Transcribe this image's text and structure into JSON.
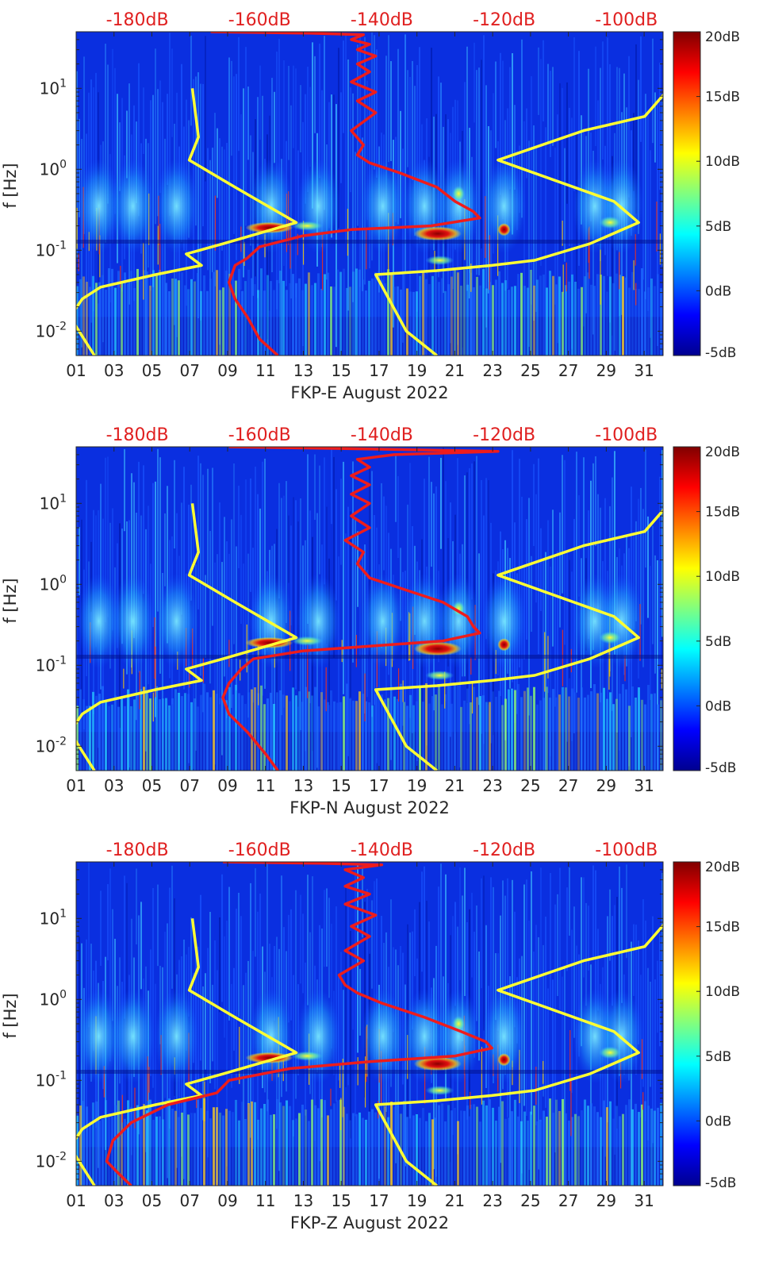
{
  "chart_data": [
    {
      "type": "heatmap",
      "xlabel": "FKP-E August 2022",
      "ylabel": "f [Hz]",
      "x_ticks": [
        "01",
        "03",
        "05",
        "07",
        "09",
        "11",
        "13",
        "15",
        "17",
        "19",
        "21",
        "23",
        "25",
        "27",
        "29",
        "31"
      ],
      "x_range_days": [
        1,
        32
      ],
      "y_range_hz": [
        0.005,
        50
      ],
      "y_ticks": [
        {
          "v": 0.01,
          "b": "10",
          "e": "-2"
        },
        {
          "v": 0.1,
          "b": "10",
          "e": "-1"
        },
        {
          "v": 1,
          "b": "10",
          "e": "0"
        },
        {
          "v": 10,
          "b": "10",
          "e": "1"
        }
      ],
      "top_axis_labels": [
        "-180dB",
        "-160dB",
        "-140dB",
        "-120dB",
        "-100dB"
      ],
      "top_axis_values": [
        -180,
        -160,
        -140,
        -120,
        -100
      ],
      "top_axis_range_db": [
        -190,
        -94
      ],
      "colorbar": {
        "range_db": [
          -5,
          20
        ],
        "labels": [
          "20dB",
          "15dB",
          "10dB",
          "5dB",
          "0dB",
          "-5dB"
        ],
        "values": [
          20,
          15,
          10,
          5,
          0,
          -5
        ]
      },
      "series": [
        {
          "name": "noise-model-low",
          "color": "#ffff33",
          "points": [
            [
              -171,
              10
            ],
            [
              -170,
              2.5
            ],
            [
              -171.5,
              1.3
            ],
            [
              -164,
              0.6
            ],
            [
              -154,
              0.22
            ],
            [
              -166,
              0.12
            ],
            [
              -172,
              0.09
            ],
            [
              -169.5,
              0.065
            ],
            [
              -177,
              0.05
            ],
            [
              -186,
              0.035
            ],
            [
              -189,
              0.025
            ],
            [
              -191,
              0.015
            ],
            [
              -187,
              0.005
            ]
          ]
        },
        {
          "name": "noise-model-high",
          "color": "#ffff33",
          "points": [
            [
              -93,
              10
            ],
            [
              -97,
              4.5
            ],
            [
              -107,
              3
            ],
            [
              -121,
              1.3
            ],
            [
              -102,
              0.4
            ],
            [
              -98,
              0.22
            ],
            [
              -106,
              0.12
            ],
            [
              -115,
              0.075
            ],
            [
              -122,
              0.065
            ],
            [
              -131,
              0.056
            ],
            [
              -141,
              0.05
            ],
            [
              -136,
              0.01
            ],
            [
              -131,
              0.005
            ]
          ]
        },
        {
          "name": "station-median-psd",
          "color": "#ee1c1c",
          "points": [
            [
              -168,
              50
            ],
            [
              -152,
              48
            ],
            [
              -143,
              46
            ],
            [
              -145,
              40
            ],
            [
              -142,
              35
            ],
            [
              -144,
              30
            ],
            [
              -141,
              25
            ],
            [
              -144,
              20
            ],
            [
              -142,
              16
            ],
            [
              -145,
              12
            ],
            [
              -141,
              9
            ],
            [
              -144,
              7
            ],
            [
              -141,
              5
            ],
            [
              -145,
              3
            ],
            [
              -143,
              2
            ],
            [
              -144,
              1.5
            ],
            [
              -142,
              1.2
            ],
            [
              -137,
              0.9
            ],
            [
              -131,
              0.6
            ],
            [
              -128,
              0.4
            ],
            [
              -125,
              0.3
            ],
            [
              -124,
              0.25
            ],
            [
              -132,
              0.2
            ],
            [
              -145,
              0.18
            ],
            [
              -153,
              0.15
            ],
            [
              -160,
              0.11
            ],
            [
              -162,
              0.08
            ],
            [
              -164,
              0.065
            ],
            [
              -165,
              0.04
            ],
            [
              -164,
              0.025
            ],
            [
              -162,
              0.015
            ],
            [
              -160,
              0.008
            ],
            [
              -157,
              0.005
            ]
          ]
        }
      ]
    },
    {
      "type": "heatmap",
      "xlabel": "FKP-N August 2022",
      "ylabel": "f [Hz]",
      "x_ticks": [
        "01",
        "03",
        "05",
        "07",
        "09",
        "11",
        "13",
        "15",
        "17",
        "19",
        "21",
        "23",
        "25",
        "27",
        "29",
        "31"
      ],
      "x_range_days": [
        1,
        32
      ],
      "y_range_hz": [
        0.005,
        50
      ],
      "y_ticks": [
        {
          "v": 0.01,
          "b": "10",
          "e": "-2"
        },
        {
          "v": 0.1,
          "b": "10",
          "e": "-1"
        },
        {
          "v": 1,
          "b": "10",
          "e": "0"
        },
        {
          "v": 10,
          "b": "10",
          "e": "1"
        }
      ],
      "top_axis_labels": [
        "-180dB",
        "-160dB",
        "-140dB",
        "-120dB",
        "-100dB"
      ],
      "top_axis_values": [
        -180,
        -160,
        -140,
        -120,
        -100
      ],
      "top_axis_range_db": [
        -190,
        -94
      ],
      "colorbar": {
        "range_db": [
          -5,
          20
        ],
        "labels": [
          "20dB",
          "15dB",
          "10dB",
          "5dB",
          "0dB",
          "-5dB"
        ],
        "values": [
          20,
          15,
          10,
          5,
          0,
          -5
        ]
      },
      "series": [
        {
          "name": "noise-model-low",
          "color": "#ffff33",
          "points": [
            [
              -171,
              10
            ],
            [
              -170,
              2.5
            ],
            [
              -171.5,
              1.3
            ],
            [
              -164,
              0.6
            ],
            [
              -154,
              0.22
            ],
            [
              -166,
              0.12
            ],
            [
              -172,
              0.09
            ],
            [
              -169.5,
              0.065
            ],
            [
              -177,
              0.05
            ],
            [
              -186,
              0.035
            ],
            [
              -189,
              0.025
            ],
            [
              -191,
              0.015
            ],
            [
              -187,
              0.005
            ]
          ]
        },
        {
          "name": "noise-model-high",
          "color": "#ffff33",
          "points": [
            [
              -93,
              10
            ],
            [
              -97,
              4.5
            ],
            [
              -107,
              3
            ],
            [
              -121,
              1.3
            ],
            [
              -102,
              0.4
            ],
            [
              -98,
              0.22
            ],
            [
              -106,
              0.12
            ],
            [
              -115,
              0.075
            ],
            [
              -122,
              0.065
            ],
            [
              -131,
              0.056
            ],
            [
              -141,
              0.05
            ],
            [
              -136,
              0.01
            ],
            [
              -131,
              0.005
            ]
          ]
        },
        {
          "name": "station-median-psd",
          "color": "#ee1c1c",
          "points": [
            [
              -165,
              50
            ],
            [
              -150,
              48
            ],
            [
              -135,
              46
            ],
            [
              -121,
              44
            ],
            [
              -138,
              40
            ],
            [
              -144,
              35
            ],
            [
              -142,
              28
            ],
            [
              -145,
              22
            ],
            [
              -142,
              17
            ],
            [
              -145,
              13
            ],
            [
              -142,
              10
            ],
            [
              -145,
              7
            ],
            [
              -142,
              5
            ],
            [
              -146,
              3.5
            ],
            [
              -143,
              2.5
            ],
            [
              -144,
              1.8
            ],
            [
              -142,
              1.2
            ],
            [
              -137,
              0.9
            ],
            [
              -130,
              0.6
            ],
            [
              -126,
              0.4
            ],
            [
              -125,
              0.3
            ],
            [
              -124,
              0.25
            ],
            [
              -130,
              0.2
            ],
            [
              -143,
              0.17
            ],
            [
              -153,
              0.15
            ],
            [
              -161,
              0.12
            ],
            [
              -163,
              0.09
            ],
            [
              -165,
              0.06
            ],
            [
              -166,
              0.04
            ],
            [
              -165,
              0.025
            ],
            [
              -162,
              0.015
            ],
            [
              -159,
              0.008
            ],
            [
              -157,
              0.005
            ]
          ]
        }
      ]
    },
    {
      "type": "heatmap",
      "xlabel": "FKP-Z August 2022",
      "ylabel": "f [Hz]",
      "x_ticks": [
        "01",
        "03",
        "05",
        "07",
        "09",
        "11",
        "13",
        "15",
        "17",
        "19",
        "21",
        "23",
        "25",
        "27",
        "29",
        "31"
      ],
      "x_range_days": [
        1,
        32
      ],
      "y_range_hz": [
        0.005,
        50
      ],
      "y_ticks": [
        {
          "v": 0.01,
          "b": "10",
          "e": "-2"
        },
        {
          "v": 0.1,
          "b": "10",
          "e": "-1"
        },
        {
          "v": 1,
          "b": "10",
          "e": "0"
        },
        {
          "v": 10,
          "b": "10",
          "e": "1"
        }
      ],
      "top_axis_labels": [
        "-180dB",
        "-160dB",
        "-140dB",
        "-120dB",
        "-100dB"
      ],
      "top_axis_values": [
        -180,
        -160,
        -140,
        -120,
        -100
      ],
      "top_axis_range_db": [
        -190,
        -94
      ],
      "colorbar": {
        "range_db": [
          -5,
          20
        ],
        "labels": [
          "20dB",
          "15dB",
          "10dB",
          "5dB",
          "0dB",
          "-5dB"
        ],
        "values": [
          20,
          15,
          10,
          5,
          0,
          -5
        ]
      },
      "series": [
        {
          "name": "noise-model-low",
          "color": "#ffff33",
          "points": [
            [
              -171,
              10
            ],
            [
              -170,
              2.5
            ],
            [
              -171.5,
              1.3
            ],
            [
              -164,
              0.6
            ],
            [
              -154,
              0.22
            ],
            [
              -166,
              0.12
            ],
            [
              -172,
              0.09
            ],
            [
              -169.5,
              0.065
            ],
            [
              -177,
              0.05
            ],
            [
              -186,
              0.035
            ],
            [
              -189,
              0.025
            ],
            [
              -191,
              0.015
            ],
            [
              -187,
              0.005
            ]
          ]
        },
        {
          "name": "noise-model-high",
          "color": "#ffff33",
          "points": [
            [
              -93,
              10
            ],
            [
              -97,
              4.5
            ],
            [
              -107,
              3
            ],
            [
              -121,
              1.3
            ],
            [
              -102,
              0.4
            ],
            [
              -98,
              0.22
            ],
            [
              -106,
              0.12
            ],
            [
              -115,
              0.075
            ],
            [
              -122,
              0.065
            ],
            [
              -131,
              0.056
            ],
            [
              -141,
              0.05
            ],
            [
              -136,
              0.01
            ],
            [
              -131,
              0.005
            ]
          ]
        },
        {
          "name": "station-median-psd",
          "color": "#ee1c1c",
          "points": [
            [
              -166,
              50
            ],
            [
              -150,
              48
            ],
            [
              -140,
              46
            ],
            [
              -146,
              40
            ],
            [
              -143,
              32
            ],
            [
              -146,
              25
            ],
            [
              -142,
              20
            ],
            [
              -146,
              15
            ],
            [
              -141,
              11
            ],
            [
              -145,
              8
            ],
            [
              -142,
              6
            ],
            [
              -146,
              4
            ],
            [
              -143,
              3
            ],
            [
              -147,
              2
            ],
            [
              -146,
              1.5
            ],
            [
              -144,
              1.2
            ],
            [
              -140,
              0.9
            ],
            [
              -133,
              0.6
            ],
            [
              -127,
              0.4
            ],
            [
              -123,
              0.3
            ],
            [
              -122,
              0.25
            ],
            [
              -128,
              0.2
            ],
            [
              -142,
              0.17
            ],
            [
              -155,
              0.14
            ],
            [
              -165,
              0.1
            ],
            [
              -167,
              0.07
            ],
            [
              -175,
              0.05
            ],
            [
              -181,
              0.03
            ],
            [
              -184,
              0.018
            ],
            [
              -185,
              0.01
            ],
            [
              -183,
              0.007
            ],
            [
              -181,
              0.005
            ]
          ]
        }
      ]
    }
  ]
}
